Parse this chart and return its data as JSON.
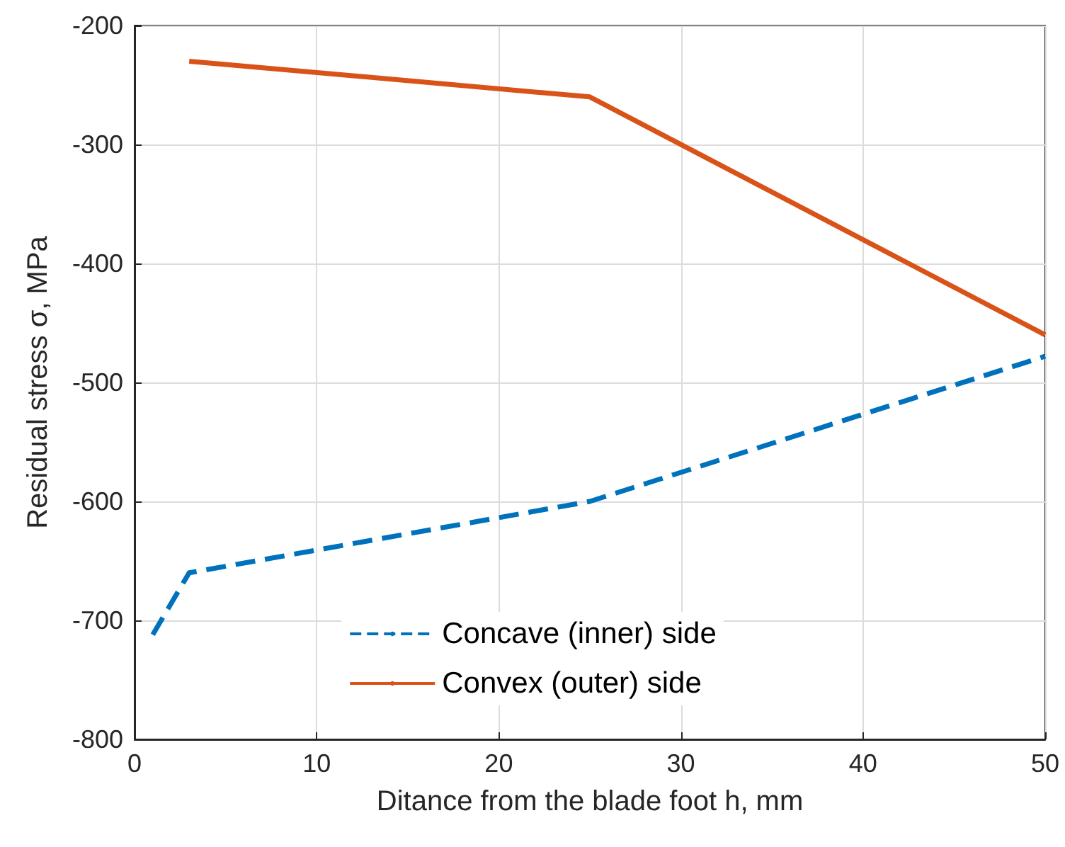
{
  "chart_data": {
    "type": "line",
    "xlabel": "Ditance from the blade foot h, mm",
    "ylabel": "Residual stress σ, MPa",
    "xlim": [
      0,
      50
    ],
    "xticks": [
      0,
      10,
      20,
      30,
      40,
      50
    ],
    "ylim": [
      -800,
      -200
    ],
    "yticks": [
      -800,
      -700,
      -600,
      -500,
      -400,
      -300,
      -200
    ],
    "grid": true,
    "legend": "bottom",
    "marker": "none",
    "series": [
      {
        "name": "Concave (inner) side",
        "color": "#0072bd",
        "line_style": "dashed",
        "x": [
          1,
          3,
          25,
          50
        ],
        "values": [
          -712,
          -660,
          -600,
          -478
        ]
      },
      {
        "name": "Convex (outer) side",
        "color": "#d95319",
        "line_style": "solid",
        "x": [
          3,
          25,
          50
        ],
        "values": [
          -230,
          -260,
          -460
        ]
      }
    ]
  }
}
